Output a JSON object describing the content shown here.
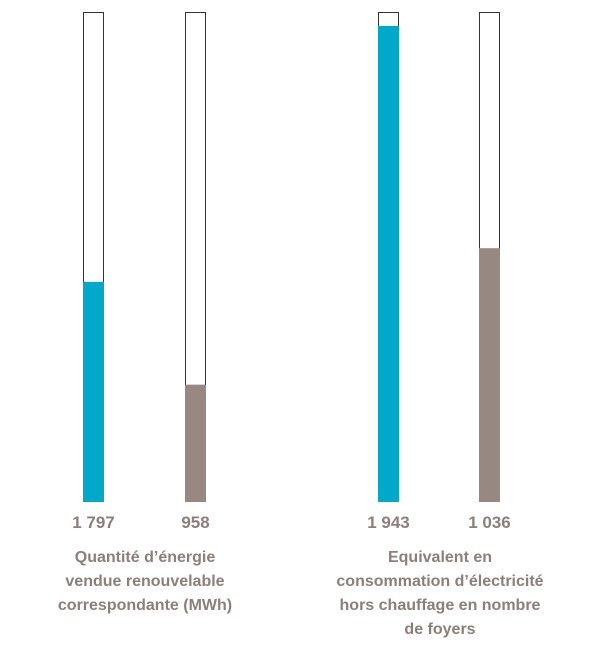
{
  "chart_data": [
    {
      "type": "bar",
      "title": "Quantité d’énergie\nvendue renouvelable\ncorrespondante (MWh)",
      "categories": [
        null,
        null
      ],
      "values": [
        1797,
        958
      ],
      "value_labels": [
        "1 797",
        "958"
      ],
      "colors": [
        "#00a9c9",
        "#978882"
      ],
      "ylim": [
        0,
        4000
      ]
    },
    {
      "type": "bar",
      "title": "Equivalent en\nconsommation d’électricité\nhors chauffage en nombre\nde foyers",
      "categories": [
        null,
        null
      ],
      "values": [
        1943,
        1036
      ],
      "value_labels": [
        "1 943",
        "1 036"
      ],
      "colors": [
        "#00a9c9",
        "#978882"
      ],
      "ylim": [
        0,
        2000
      ]
    }
  ]
}
